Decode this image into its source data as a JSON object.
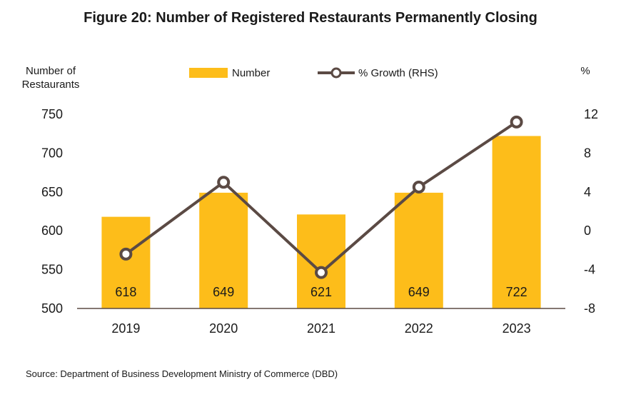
{
  "title": "Figure 20: Number of Registered Restaurants Permanently Closing",
  "source": "Source: Department of Business Development Ministry of Commerce (DBD)",
  "chart_data": {
    "type": "bar",
    "categories": [
      "2019",
      "2020",
      "2021",
      "2022",
      "2023"
    ],
    "series": [
      {
        "name": "Number",
        "type": "bar",
        "axis": "left",
        "color": "#FDBD1A",
        "values": [
          618,
          649,
          621,
          649,
          722
        ]
      },
      {
        "name": "% Growth (RHS)",
        "type": "line",
        "axis": "right",
        "color": "#5B4A44",
        "values": [
          -2.4,
          5.0,
          -4.3,
          4.5,
          11.2
        ]
      }
    ],
    "ylabel_left_lines": [
      "Number of",
      "Restaurants"
    ],
    "ylabel_right": "%",
    "ylim_left": [
      500,
      750
    ],
    "yticks_left": [
      "750",
      "700",
      "650",
      "600",
      "550",
      "500"
    ],
    "ylim_right": [
      -8,
      12
    ],
    "yticks_right": [
      "12",
      "8",
      "4",
      "0",
      "-4",
      "-8"
    ],
    "data_labels": [
      "618",
      "649",
      "621",
      "649",
      "722"
    ],
    "legend_position": "top",
    "grid": false
  }
}
